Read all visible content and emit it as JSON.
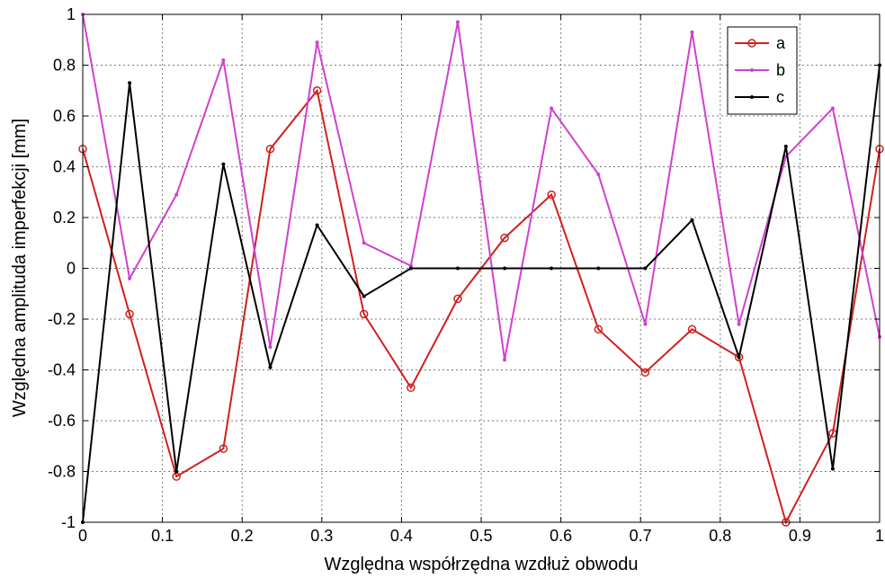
{
  "chart_data": {
    "type": "line",
    "title": "",
    "xlabel": "Względna współrzędna wzdłuż obwodu",
    "ylabel": "Względna amplituda imperfekcji [mm]",
    "xlim": [
      0,
      1
    ],
    "ylim": [
      -1,
      1
    ],
    "xticks": [
      "0",
      "0.1",
      "0.2",
      "0.3",
      "0.4",
      "0.5",
      "0.6",
      "0.7",
      "0.8",
      "0.9",
      "1"
    ],
    "yticks": [
      "-1",
      "-0.8",
      "-0.6",
      "-0.4",
      "-0.2",
      "0",
      "0.2",
      "0.4",
      "0.6",
      "0.8",
      "1"
    ],
    "grid": true,
    "legend_position": "top-right",
    "x": [
      0,
      0.0588,
      0.1176,
      0.1765,
      0.2353,
      0.2941,
      0.3529,
      0.4118,
      0.4706,
      0.5294,
      0.5882,
      0.6471,
      0.7059,
      0.7647,
      0.8235,
      0.8824,
      0.9412,
      1
    ],
    "series": [
      {
        "name": "a",
        "color": "#d0201f",
        "marker": "circle",
        "values": [
          0.47,
          -0.18,
          -0.82,
          -0.71,
          0.47,
          0.7,
          -0.18,
          -0.47,
          -0.12,
          0.12,
          0.29,
          -0.24,
          -0.41,
          -0.24,
          -0.35,
          -1.0,
          -0.65,
          0.47
        ]
      },
      {
        "name": "b",
        "color": "#d040d0",
        "marker": "dot",
        "values": [
          1.0,
          -0.04,
          0.29,
          0.82,
          -0.31,
          0.89,
          0.1,
          0.01,
          0.97,
          -0.36,
          0.63,
          0.37,
          -0.22,
          0.93,
          -0.22,
          0.44,
          0.63,
          -0.27
        ]
      },
      {
        "name": "c",
        "color": "#000000",
        "marker": "dot",
        "values": [
          -1.0,
          0.73,
          -0.8,
          0.41,
          -0.39,
          0.17,
          -0.11,
          0.0,
          0.0,
          0.0,
          0.0,
          0.0,
          0.0,
          0.19,
          -0.35,
          0.48,
          -0.79,
          0.8
        ]
      }
    ]
  }
}
